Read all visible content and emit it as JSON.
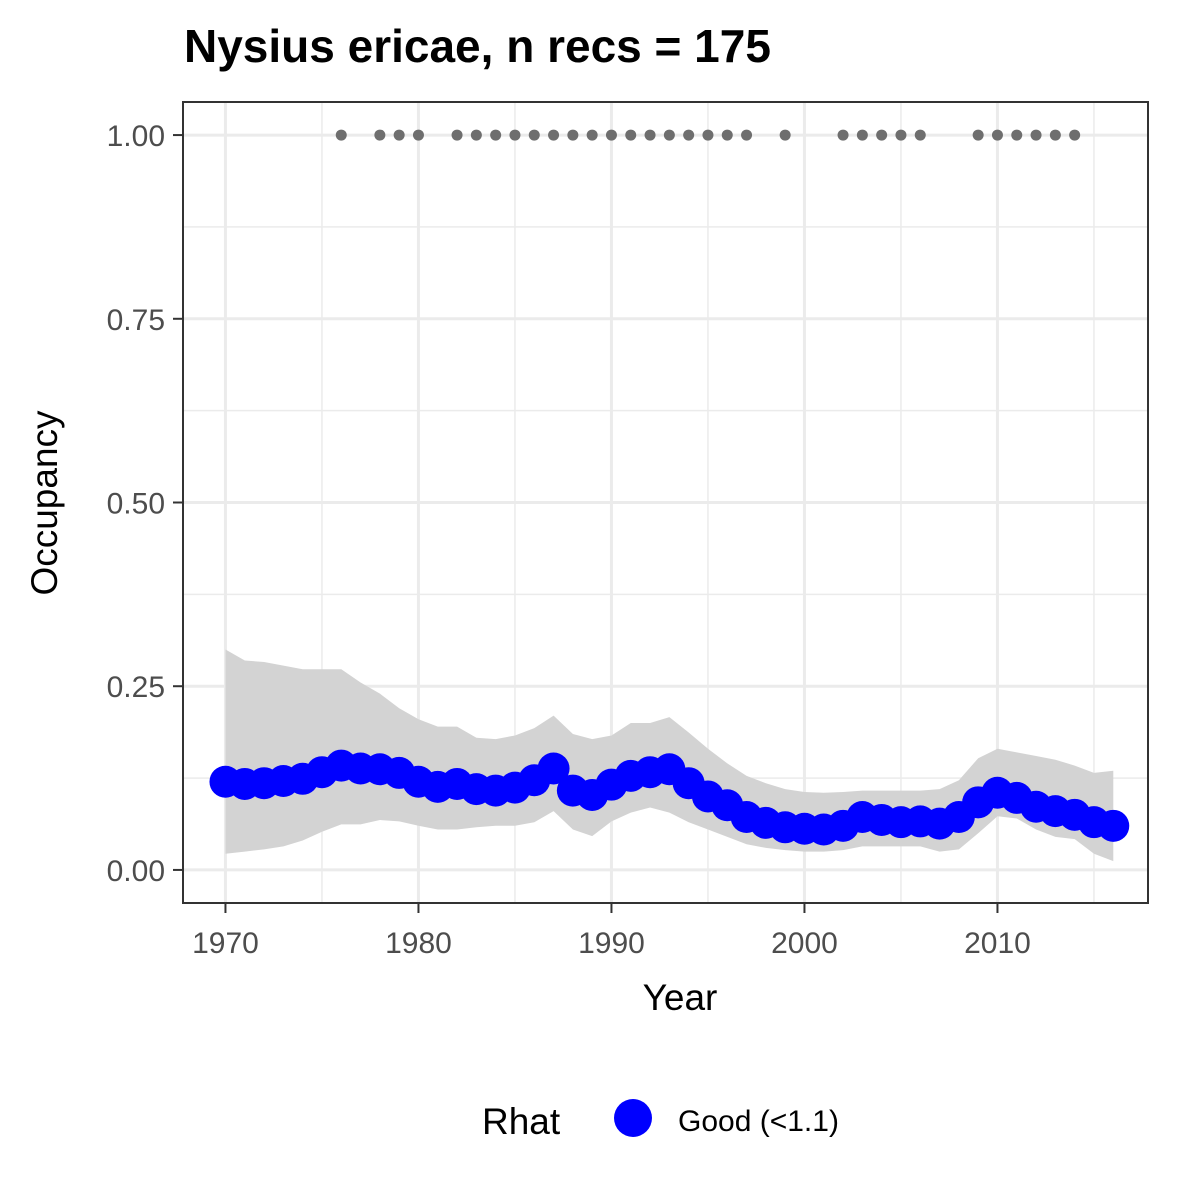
{
  "chart_data": {
    "type": "line",
    "title": "Nysius ericae, n recs = 175",
    "xlabel": "Year",
    "ylabel": "Occupancy",
    "xlim": [
      1967.8,
      2017.8
    ],
    "ylim": [
      -0.045,
      1.045
    ],
    "x_ticks": [
      1970,
      1980,
      1990,
      2000,
      2010
    ],
    "x_tick_labels": [
      "1970",
      "1980",
      "1990",
      "2000",
      "2010"
    ],
    "y_ticks": [
      0,
      0.25,
      0.5,
      0.75,
      1
    ],
    "y_tick_labels": [
      "0.00",
      "0.25",
      "0.50",
      "0.75",
      "1.00"
    ],
    "grid": true,
    "legend_position": "bottom",
    "legend": {
      "title": "Rhat",
      "entries": [
        {
          "label": "Good (<1.1)",
          "color": "#0000ff"
        }
      ]
    },
    "colors": {
      "series": "#0000ff",
      "ribbon": "#d3d3d3",
      "records": "#6e6e6e",
      "grid": "#ebebeb",
      "panel_border": "#333333"
    },
    "series": [
      {
        "years": [
          1970,
          1971,
          1972,
          1973,
          1974,
          1975,
          1976,
          1977,
          1978,
          1979,
          1980,
          1981,
          1982,
          1983,
          1984,
          1985,
          1986,
          1987,
          1988,
          1989,
          1990,
          1991,
          1992,
          1993,
          1994,
          1995,
          1996,
          1997,
          1998,
          1999,
          2000,
          2001,
          2002,
          2003,
          2004,
          2005,
          2006,
          2007,
          2008,
          2009,
          2010,
          2011,
          2012,
          2013,
          2014,
          2015,
          2016
        ],
        "occupancy": [
          0.12,
          0.117,
          0.118,
          0.121,
          0.124,
          0.133,
          0.142,
          0.138,
          0.137,
          0.132,
          0.12,
          0.113,
          0.117,
          0.11,
          0.108,
          0.112,
          0.122,
          0.138,
          0.108,
          0.102,
          0.116,
          0.128,
          0.133,
          0.137,
          0.118,
          0.1,
          0.088,
          0.072,
          0.064,
          0.058,
          0.056,
          0.055,
          0.06,
          0.072,
          0.068,
          0.065,
          0.066,
          0.063,
          0.072,
          0.092,
          0.105,
          0.098,
          0.086,
          0.08,
          0.075,
          0.065,
          0.06
        ],
        "lower": [
          0.022,
          0.025,
          0.028,
          0.032,
          0.04,
          0.052,
          0.062,
          0.062,
          0.068,
          0.066,
          0.06,
          0.055,
          0.055,
          0.058,
          0.06,
          0.06,
          0.065,
          0.08,
          0.055,
          0.046,
          0.066,
          0.078,
          0.085,
          0.078,
          0.065,
          0.055,
          0.045,
          0.035,
          0.03,
          0.027,
          0.025,
          0.025,
          0.027,
          0.032,
          0.032,
          0.032,
          0.032,
          0.025,
          0.028,
          0.05,
          0.073,
          0.07,
          0.055,
          0.045,
          0.042,
          0.022,
          0.012
        ],
        "upper": [
          0.3,
          0.285,
          0.283,
          0.278,
          0.273,
          0.273,
          0.273,
          0.255,
          0.24,
          0.22,
          0.205,
          0.195,
          0.195,
          0.18,
          0.178,
          0.183,
          0.193,
          0.21,
          0.185,
          0.178,
          0.183,
          0.2,
          0.2,
          0.208,
          0.187,
          0.165,
          0.145,
          0.128,
          0.118,
          0.11,
          0.106,
          0.105,
          0.106,
          0.108,
          0.108,
          0.108,
          0.108,
          0.11,
          0.122,
          0.152,
          0.165,
          0.16,
          0.155,
          0.15,
          0.142,
          0.132,
          0.135
        ]
      }
    ],
    "records": {
      "years": [
        1976,
        1978,
        1979,
        1980,
        1982,
        1983,
        1984,
        1985,
        1986,
        1987,
        1988,
        1989,
        1990,
        1991,
        1992,
        1993,
        1994,
        1995,
        1996,
        1997,
        1999,
        2002,
        2003,
        2004,
        2005,
        2006,
        2009,
        2010,
        2011,
        2012,
        2013,
        2014
      ],
      "value": 1.0
    }
  }
}
